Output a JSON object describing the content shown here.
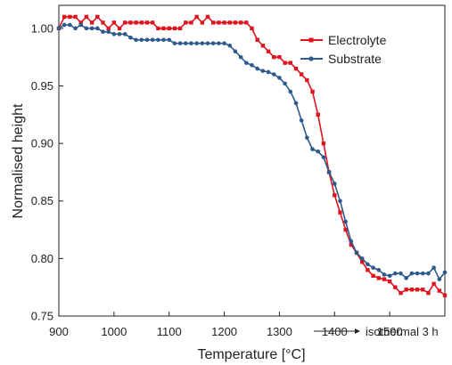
{
  "chart_data": {
    "type": "line",
    "xlabel": "Temperature [°C]",
    "ylabel": "Normalised height",
    "xlim": [
      900,
      1600
    ],
    "ylim": [
      0.75,
      1.02
    ],
    "xticks": [
      "900",
      "1000",
      "1100",
      "1200",
      "1300",
      "1400",
      "1500"
    ],
    "yticks": [
      "0.75",
      "0.80",
      "0.85",
      "0.90",
      "0.95",
      "1.00"
    ],
    "legend_position": "top-right",
    "annotation": "isothermal 3 h",
    "series": [
      {
        "name": "Electrolyte",
        "color": "#e0141e",
        "points": [
          [
            900,
            1.0
          ],
          [
            910,
            1.01
          ],
          [
            920,
            1.01
          ],
          [
            930,
            1.01
          ],
          [
            940,
            1.005
          ],
          [
            950,
            1.01
          ],
          [
            960,
            1.005
          ],
          [
            970,
            1.01
          ],
          [
            980,
            1.005
          ],
          [
            990,
            1.0
          ],
          [
            1000,
            1.005
          ],
          [
            1010,
            1.0
          ],
          [
            1020,
            1.005
          ],
          [
            1030,
            1.005
          ],
          [
            1040,
            1.005
          ],
          [
            1050,
            1.005
          ],
          [
            1060,
            1.005
          ],
          [
            1070,
            1.005
          ],
          [
            1080,
            1.0
          ],
          [
            1090,
            1.0
          ],
          [
            1100,
            1.0
          ],
          [
            1110,
            1.0
          ],
          [
            1120,
            1.0
          ],
          [
            1130,
            1.005
          ],
          [
            1140,
            1.005
          ],
          [
            1150,
            1.01
          ],
          [
            1160,
            1.005
          ],
          [
            1170,
            1.01
          ],
          [
            1180,
            1.005
          ],
          [
            1190,
            1.005
          ],
          [
            1200,
            1.005
          ],
          [
            1210,
            1.005
          ],
          [
            1220,
            1.005
          ],
          [
            1230,
            1.005
          ],
          [
            1240,
            1.005
          ],
          [
            1250,
            1.0
          ],
          [
            1260,
            0.99
          ],
          [
            1270,
            0.985
          ],
          [
            1280,
            0.98
          ],
          [
            1290,
            0.975
          ],
          [
            1300,
            0.975
          ],
          [
            1310,
            0.97
          ],
          [
            1320,
            0.97
          ],
          [
            1330,
            0.965
          ],
          [
            1340,
            0.96
          ],
          [
            1350,
            0.955
          ],
          [
            1360,
            0.945
          ],
          [
            1370,
            0.925
          ],
          [
            1380,
            0.9
          ],
          [
            1390,
            0.875
          ],
          [
            1400,
            0.855
          ],
          [
            1410,
            0.84
          ],
          [
            1420,
            0.825
          ],
          [
            1430,
            0.812
          ],
          [
            1440,
            0.805
          ],
          [
            1450,
            0.797
          ],
          [
            1460,
            0.79
          ],
          [
            1470,
            0.785
          ],
          [
            1480,
            0.783
          ],
          [
            1490,
            0.782
          ],
          [
            1500,
            0.78
          ],
          [
            1510,
            0.775
          ],
          [
            1520,
            0.77
          ],
          [
            1530,
            0.773
          ],
          [
            1540,
            0.773
          ],
          [
            1550,
            0.773
          ],
          [
            1560,
            0.773
          ],
          [
            1570,
            0.77
          ],
          [
            1580,
            0.778
          ],
          [
            1590,
            0.772
          ],
          [
            1600,
            0.768
          ]
        ]
      },
      {
        "name": "Substrate",
        "color": "#2c5a8c",
        "points": [
          [
            900,
            1.0
          ],
          [
            910,
            1.003
          ],
          [
            920,
            1.003
          ],
          [
            930,
            1.0
          ],
          [
            940,
            1.003
          ],
          [
            950,
            1.0
          ],
          [
            960,
            1.0
          ],
          [
            970,
            1.0
          ],
          [
            980,
            0.997
          ],
          [
            990,
            0.997
          ],
          [
            1000,
            0.995
          ],
          [
            1010,
            0.995
          ],
          [
            1020,
            0.995
          ],
          [
            1030,
            0.992
          ],
          [
            1040,
            0.99
          ],
          [
            1050,
            0.99
          ],
          [
            1060,
            0.99
          ],
          [
            1070,
            0.99
          ],
          [
            1080,
            0.99
          ],
          [
            1090,
            0.99
          ],
          [
            1100,
            0.99
          ],
          [
            1110,
            0.987
          ],
          [
            1120,
            0.987
          ],
          [
            1130,
            0.987
          ],
          [
            1140,
            0.987
          ],
          [
            1150,
            0.987
          ],
          [
            1160,
            0.987
          ],
          [
            1170,
            0.987
          ],
          [
            1180,
            0.987
          ],
          [
            1190,
            0.987
          ],
          [
            1200,
            0.987
          ],
          [
            1210,
            0.985
          ],
          [
            1220,
            0.98
          ],
          [
            1230,
            0.975
          ],
          [
            1240,
            0.97
          ],
          [
            1250,
            0.968
          ],
          [
            1260,
            0.965
          ],
          [
            1270,
            0.963
          ],
          [
            1280,
            0.962
          ],
          [
            1290,
            0.96
          ],
          [
            1300,
            0.957
          ],
          [
            1310,
            0.952
          ],
          [
            1320,
            0.945
          ],
          [
            1330,
            0.935
          ],
          [
            1340,
            0.92
          ],
          [
            1350,
            0.905
          ],
          [
            1360,
            0.895
          ],
          [
            1370,
            0.893
          ],
          [
            1380,
            0.888
          ],
          [
            1390,
            0.875
          ],
          [
            1400,
            0.865
          ],
          [
            1410,
            0.85
          ],
          [
            1420,
            0.832
          ],
          [
            1430,
            0.815
          ],
          [
            1440,
            0.805
          ],
          [
            1450,
            0.8
          ],
          [
            1460,
            0.795
          ],
          [
            1470,
            0.792
          ],
          [
            1480,
            0.79
          ],
          [
            1490,
            0.786
          ],
          [
            1500,
            0.785
          ],
          [
            1510,
            0.787
          ],
          [
            1520,
            0.787
          ],
          [
            1530,
            0.783
          ],
          [
            1540,
            0.787
          ],
          [
            1550,
            0.787
          ],
          [
            1560,
            0.787
          ],
          [
            1570,
            0.787
          ],
          [
            1580,
            0.792
          ],
          [
            1590,
            0.782
          ],
          [
            1600,
            0.788
          ]
        ]
      }
    ]
  }
}
